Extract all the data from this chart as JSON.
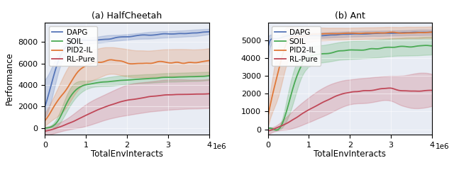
{
  "fig_width": 6.4,
  "fig_height": 2.64,
  "dpi": 100,
  "background_color": "#e8ecf4",
  "xlabel": "TotalEnvInteracts",
  "ylabel": "Performance",
  "xlim": [
    0,
    4000000
  ],
  "xticks": [
    0,
    1000000,
    2000000,
    3000000,
    4000000
  ],
  "legend_labels": [
    "DAPG",
    "SOIL",
    "PID2-IL",
    "RL-Pure"
  ],
  "colors": {
    "DAPG": "#5575b8",
    "SOIL": "#4aaa54",
    "PID2-IL": "#e07838",
    "RL-Pure": "#c04858"
  },
  "subplot_titles": [
    "(a) HalfCheetah",
    "(b) Ant"
  ],
  "halfcheetah": {
    "ylim": [
      -600,
      9800
    ],
    "yticks": [
      0,
      2000,
      4000,
      6000,
      8000
    ],
    "n_points": 80,
    "DAPG": {
      "x_knots": [
        0,
        0.15,
        0.35,
        0.6,
        1.0,
        1.5,
        2.0,
        2.5,
        3.0,
        3.5,
        4.0
      ],
      "mean_knots": [
        2000,
        4000,
        6500,
        7800,
        8100,
        8300,
        8500,
        8600,
        8700,
        8800,
        9000
      ],
      "low_knots": [
        1000,
        2500,
        5500,
        7200,
        7800,
        8000,
        8200,
        8300,
        8400,
        8500,
        8700
      ],
      "high_knots": [
        4500,
        5500,
        7200,
        8200,
        8400,
        8600,
        8700,
        8900,
        9000,
        9100,
        9200
      ],
      "noise_mean": 60,
      "noise_band": 0
    },
    "SOIL": {
      "x_knots": [
        0,
        0.1,
        0.3,
        0.6,
        1.0,
        1.5,
        2.0,
        2.5,
        3.0,
        3.5,
        4.0
      ],
      "mean_knots": [
        0,
        50,
        600,
        2800,
        4000,
        4300,
        4500,
        4600,
        4700,
        4750,
        4850
      ],
      "low_knots": [
        -100,
        0,
        200,
        2000,
        3600,
        3900,
        4100,
        4200,
        4300,
        4350,
        4450
      ],
      "high_knots": [
        100,
        150,
        1000,
        3600,
        4400,
        4700,
        4900,
        5000,
        5100,
        5150,
        5250
      ],
      "noise_mean": 40,
      "noise_band": 0
    },
    "PID2-IL": {
      "x_knots": [
        0,
        0.2,
        0.5,
        0.8,
        1.2,
        1.6,
        2.0,
        2.5,
        3.0,
        3.5,
        4.0
      ],
      "mean_knots": [
        800,
        1800,
        3500,
        5200,
        6000,
        6300,
        6100,
        6000,
        6100,
        6100,
        6200
      ],
      "low_knots": [
        200,
        800,
        1800,
        3500,
        4500,
        5000,
        4800,
        4700,
        4800,
        4800,
        4900
      ],
      "high_knots": [
        1400,
        2800,
        5200,
        6800,
        7300,
        7500,
        7300,
        7200,
        7300,
        7300,
        7400
      ],
      "noise_mean": 120,
      "noise_band": 0
    },
    "RL-Pure": {
      "x_knots": [
        0,
        0.2,
        0.5,
        1.0,
        1.5,
        2.0,
        2.5,
        3.0,
        3.5,
        4.0
      ],
      "mean_knots": [
        -300,
        -100,
        300,
        1200,
        2000,
        2600,
        2900,
        3100,
        3150,
        3200
      ],
      "low_knots": [
        -700,
        -500,
        -200,
        200,
        800,
        1200,
        1500,
        1700,
        1800,
        1850
      ],
      "high_knots": [
        100,
        300,
        800,
        2200,
        3200,
        4000,
        4300,
        4500,
        4500,
        4550
      ],
      "noise_mean": 30,
      "noise_band": 0
    }
  },
  "ant": {
    "ylim": [
      -300,
      6000
    ],
    "yticks": [
      0,
      1000,
      2000,
      3000,
      4000,
      5000
    ],
    "n_points": 80,
    "DAPG": {
      "x_knots": [
        0,
        0.05,
        0.15,
        0.4,
        0.8,
        1.5,
        2.0,
        2.5,
        3.0,
        3.5,
        4.0
      ],
      "mean_knots": [
        4600,
        5000,
        5100,
        5200,
        5250,
        5300,
        5350,
        5380,
        5400,
        5430,
        5450
      ],
      "low_knots": [
        3800,
        4600,
        4900,
        5050,
        5100,
        5150,
        5200,
        5230,
        5250,
        5280,
        5300
      ],
      "high_knots": [
        5200,
        5300,
        5300,
        5350,
        5400,
        5450,
        5500,
        5530,
        5550,
        5580,
        5600
      ],
      "noise_mean": 25,
      "noise_band": 0
    },
    "SOIL": {
      "x_knots": [
        0,
        0.1,
        0.3,
        0.55,
        0.8,
        1.2,
        1.8,
        2.5,
        3.0,
        3.5,
        4.0
      ],
      "mean_knots": [
        0,
        10,
        100,
        1800,
        3500,
        4200,
        4400,
        4500,
        4600,
        4650,
        4700
      ],
      "low_knots": [
        -100,
        -50,
        0,
        1000,
        2800,
        3700,
        3900,
        4000,
        4100,
        4150,
        4200
      ],
      "high_knots": [
        100,
        100,
        250,
        2600,
        4200,
        4700,
        4900,
        5000,
        5100,
        5150,
        5200
      ],
      "noise_mean": 50,
      "noise_band": 0
    },
    "PID2-IL": {
      "x_knots": [
        0,
        0.1,
        0.25,
        0.45,
        0.7,
        1.0,
        1.5,
        2.0,
        2.5,
        3.0,
        3.5,
        4.0
      ],
      "mean_knots": [
        700,
        1800,
        3200,
        4800,
        5200,
        5300,
        5350,
        5380,
        5400,
        5420,
        5430,
        5450
      ],
      "low_knots": [
        100,
        900,
        1800,
        3600,
        4600,
        4900,
        5000,
        5050,
        5080,
        5100,
        5110,
        5130
      ],
      "high_knots": [
        1300,
        2700,
        4600,
        5700,
        5700,
        5700,
        5700,
        5710,
        5720,
        5740,
        5750,
        5770
      ],
      "noise_mean": 30,
      "noise_band": 0
    },
    "RL-Pure": {
      "x_knots": [
        0,
        0.2,
        0.5,
        1.0,
        1.5,
        2.0,
        2.5,
        3.0,
        3.2,
        3.5,
        4.0
      ],
      "mean_knots": [
        -100,
        50,
        400,
        1100,
        1700,
        2100,
        2200,
        2300,
        2200,
        2150,
        2200
      ],
      "low_knots": [
        -300,
        -100,
        0,
        400,
        900,
        1400,
        1500,
        1600,
        1400,
        1200,
        1300
      ],
      "high_knots": [
        100,
        200,
        800,
        1800,
        2500,
        2800,
        2900,
        3000,
        3000,
        3100,
        3100
      ],
      "noise_mean": 40,
      "noise_band": 0
    }
  }
}
